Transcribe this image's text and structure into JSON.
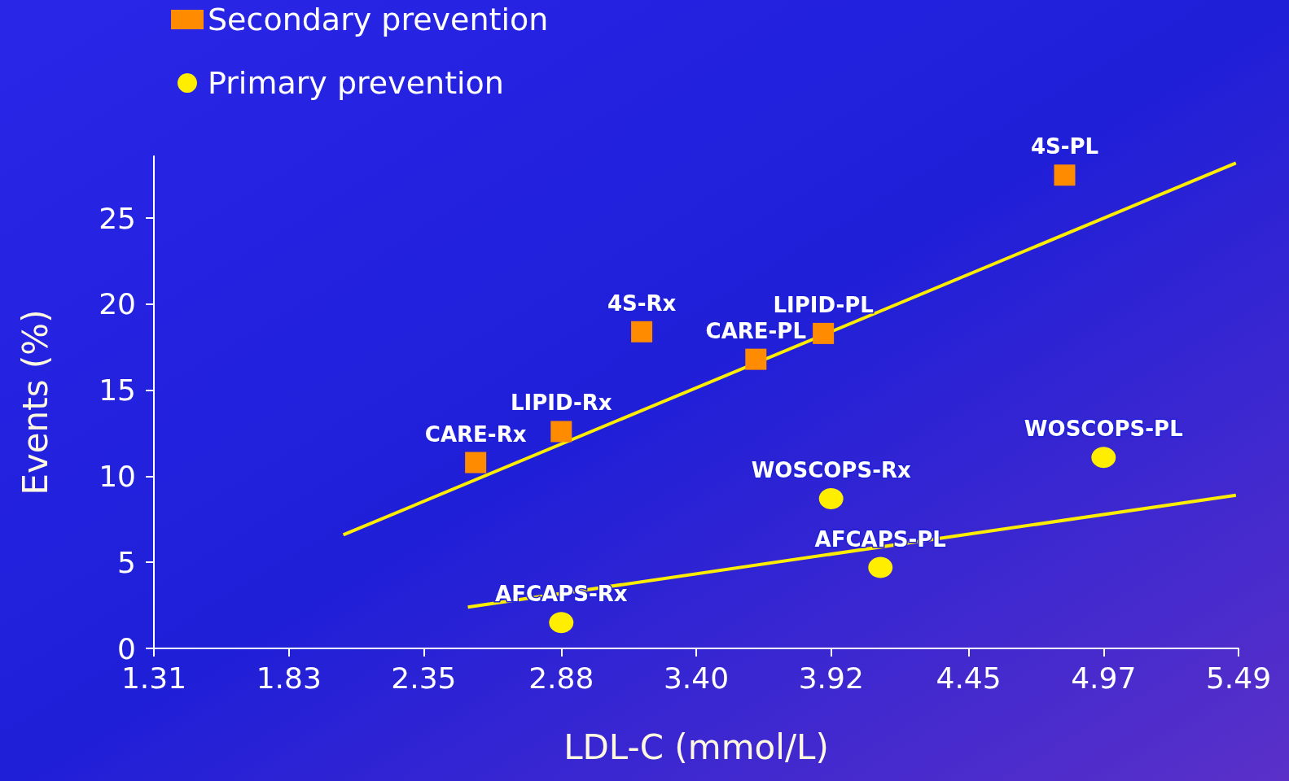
{
  "chart_data": {
    "type": "scatter",
    "xlabel": "LDL-C (mmol/L)",
    "ylabel": "Events (%)",
    "xlim": [
      1.31,
      5.49
    ],
    "xticks": [
      1.31,
      1.83,
      2.35,
      2.88,
      {
        "value": 3.4,
        "label": "3.40"
      },
      3.92,
      4.45,
      4.97,
      5.49
    ],
    "ylim": [
      0,
      28.6
    ],
    "yticks": [
      0,
      5,
      10,
      15,
      20,
      25
    ],
    "grid": false,
    "legend": "top left",
    "series": [
      {
        "name": "Secondary prevention",
        "color": "#ff8c00",
        "marker": "square",
        "x": [
          2.55,
          2.88,
          3.19,
          3.63,
          3.89,
          4.82
        ],
        "values": [
          10.8,
          12.6,
          18.4,
          16.8,
          18.3,
          27.5
        ]
      },
      {
        "name": "Primary prevention",
        "color": "#ffee00",
        "marker": "circle",
        "x": [
          2.88,
          3.92,
          4.11,
          4.97
        ],
        "values": [
          1.5,
          8.7,
          4.7,
          11.1
        ]
      },
      {
        "type": "line",
        "color": "#ffee00",
        "x": [
          2.04,
          5.48
        ],
        "values": [
          6.6,
          28.2
        ]
      },
      {
        "type": "line",
        "color": "#ffee00",
        "x": [
          2.52,
          5.48
        ],
        "values": [
          2.4,
          8.9
        ]
      }
    ],
    "annotations": [
      {
        "text": "CARE-Rx",
        "x": 2.55,
        "y": 10.8
      },
      {
        "text": "LIPID-Rx",
        "x": 2.88,
        "y": 12.6
      },
      {
        "text": "4S-Rx",
        "x": 3.19,
        "y": 18.4
      },
      {
        "text": "CARE-PL",
        "x": 3.63,
        "y": 16.8
      },
      {
        "text": "LIPID-PL",
        "x": 3.89,
        "y": 18.3
      },
      {
        "text": "4S-PL",
        "x": 4.82,
        "y": 27.5
      },
      {
        "text": "AFCAPS-Rx",
        "x": 2.88,
        "y": 1.5
      },
      {
        "text": "WOSCOPS-Rx",
        "x": 3.92,
        "y": 8.7
      },
      {
        "text": "AFCAPS-PL",
        "x": 4.11,
        "y": 4.7
      },
      {
        "text": "WOSCOPS-PL",
        "x": 4.97,
        "y": 11.1
      }
    ]
  }
}
